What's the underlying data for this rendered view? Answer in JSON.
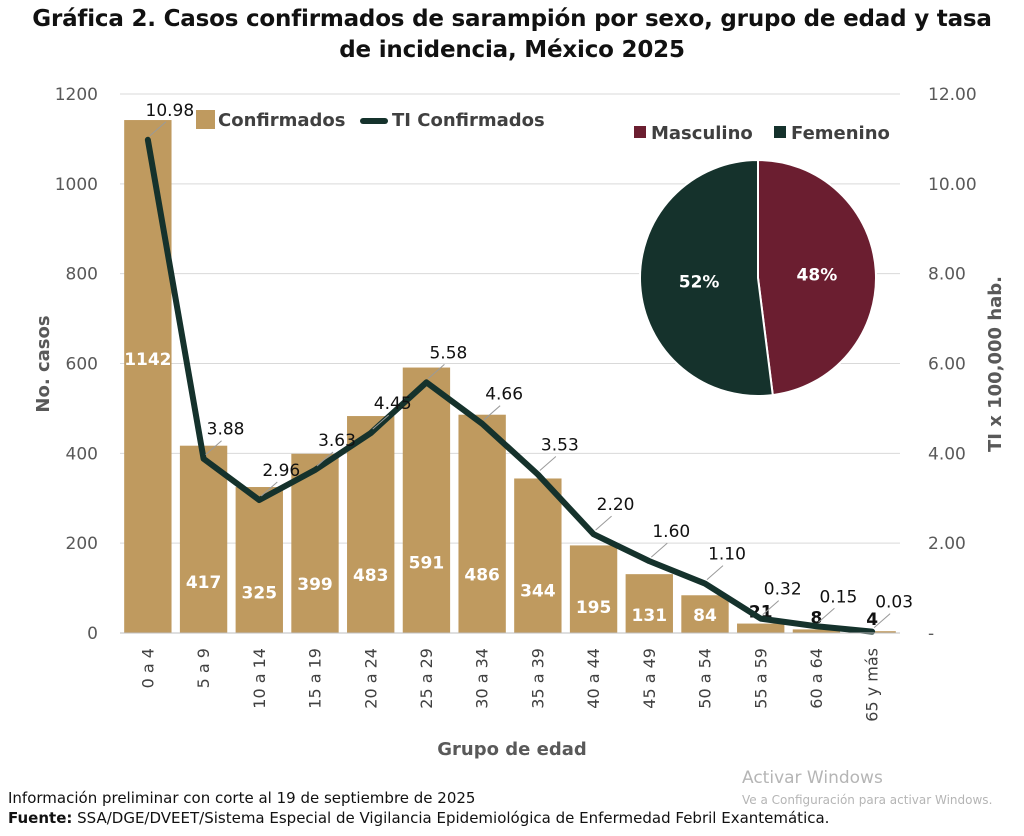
{
  "title_line1": "Gráfica 2. Casos confirmados de sarampión por sexo, grupo de edad y tasa",
  "title_line2": "de incidencia, México 2025",
  "footer": {
    "note": "Información preliminar con corte al 19 de septiembre de 2025",
    "source_label": "Fuente:",
    "source_text": " SSA/DGE/DVEET/Sistema Especial de Vigilancia Epidemiológica de Enfermedad Febril Exantemática."
  },
  "watermark": {
    "title": "Activar Windows",
    "subtitle": "Ve a Configuración para activar Windows."
  },
  "colors": {
    "bar": "#bf9a5f",
    "line": "#15322c",
    "masculino": "#6b1e30",
    "femenino": "#15322c",
    "axis_text": "#595959"
  },
  "chart_data": [
    {
      "type": "bar",
      "categories": [
        "0 a 4",
        "5 a 9",
        "10 a 14",
        "15 a 19",
        "20 a 24",
        "25 a 29",
        "30 a 34",
        "35 a 39",
        "40 a 44",
        "45 a 49",
        "50 a 54",
        "55 a 59",
        "60 a 64",
        "65 y más"
      ],
      "series": [
        {
          "name": "Confirmados",
          "type": "bar",
          "axis": "left",
          "values": [
            1142,
            417,
            325,
            399,
            483,
            591,
            486,
            344,
            195,
            131,
            84,
            21,
            8,
            4
          ],
          "labels": [
            "1142",
            "417",
            "325",
            "399",
            "483",
            "591",
            "486",
            "344",
            "195",
            "131",
            "84",
            "21",
            "8",
            "4"
          ]
        },
        {
          "name": "TI Confirmados",
          "type": "line",
          "axis": "right",
          "values": [
            10.98,
            3.88,
            2.96,
            3.63,
            4.45,
            5.58,
            4.66,
            3.53,
            2.2,
            1.6,
            1.1,
            0.32,
            0.15,
            0.03
          ],
          "labels": [
            "10.98",
            "3.88",
            "2.96",
            "3.63",
            "4.45",
            "5.58",
            "4.66",
            "3.53",
            "2.20",
            "1.60",
            "1.10",
            "0.32",
            "0.15",
            "0.03"
          ]
        }
      ],
      "xlabel": "Grupo de edad",
      "ylabel": "No. casos",
      "y2label": "TI x 100,000 hab.",
      "ylim": [
        0,
        1200
      ],
      "y2lim": [
        0,
        12
      ],
      "yticks": [
        "0",
        "200",
        "400",
        "600",
        "800",
        "1000",
        "1200"
      ],
      "y2ticks": [
        "-",
        "2.00",
        "4.00",
        "6.00",
        "8.00",
        "10.00",
        "12.00"
      ],
      "grid": true,
      "legend_position": "top-left"
    },
    {
      "type": "pie",
      "categories": [
        "Masculino",
        "Femenino"
      ],
      "values": [
        48,
        52
      ],
      "labels": [
        "48%",
        "52%"
      ],
      "legend_position": "top"
    }
  ]
}
